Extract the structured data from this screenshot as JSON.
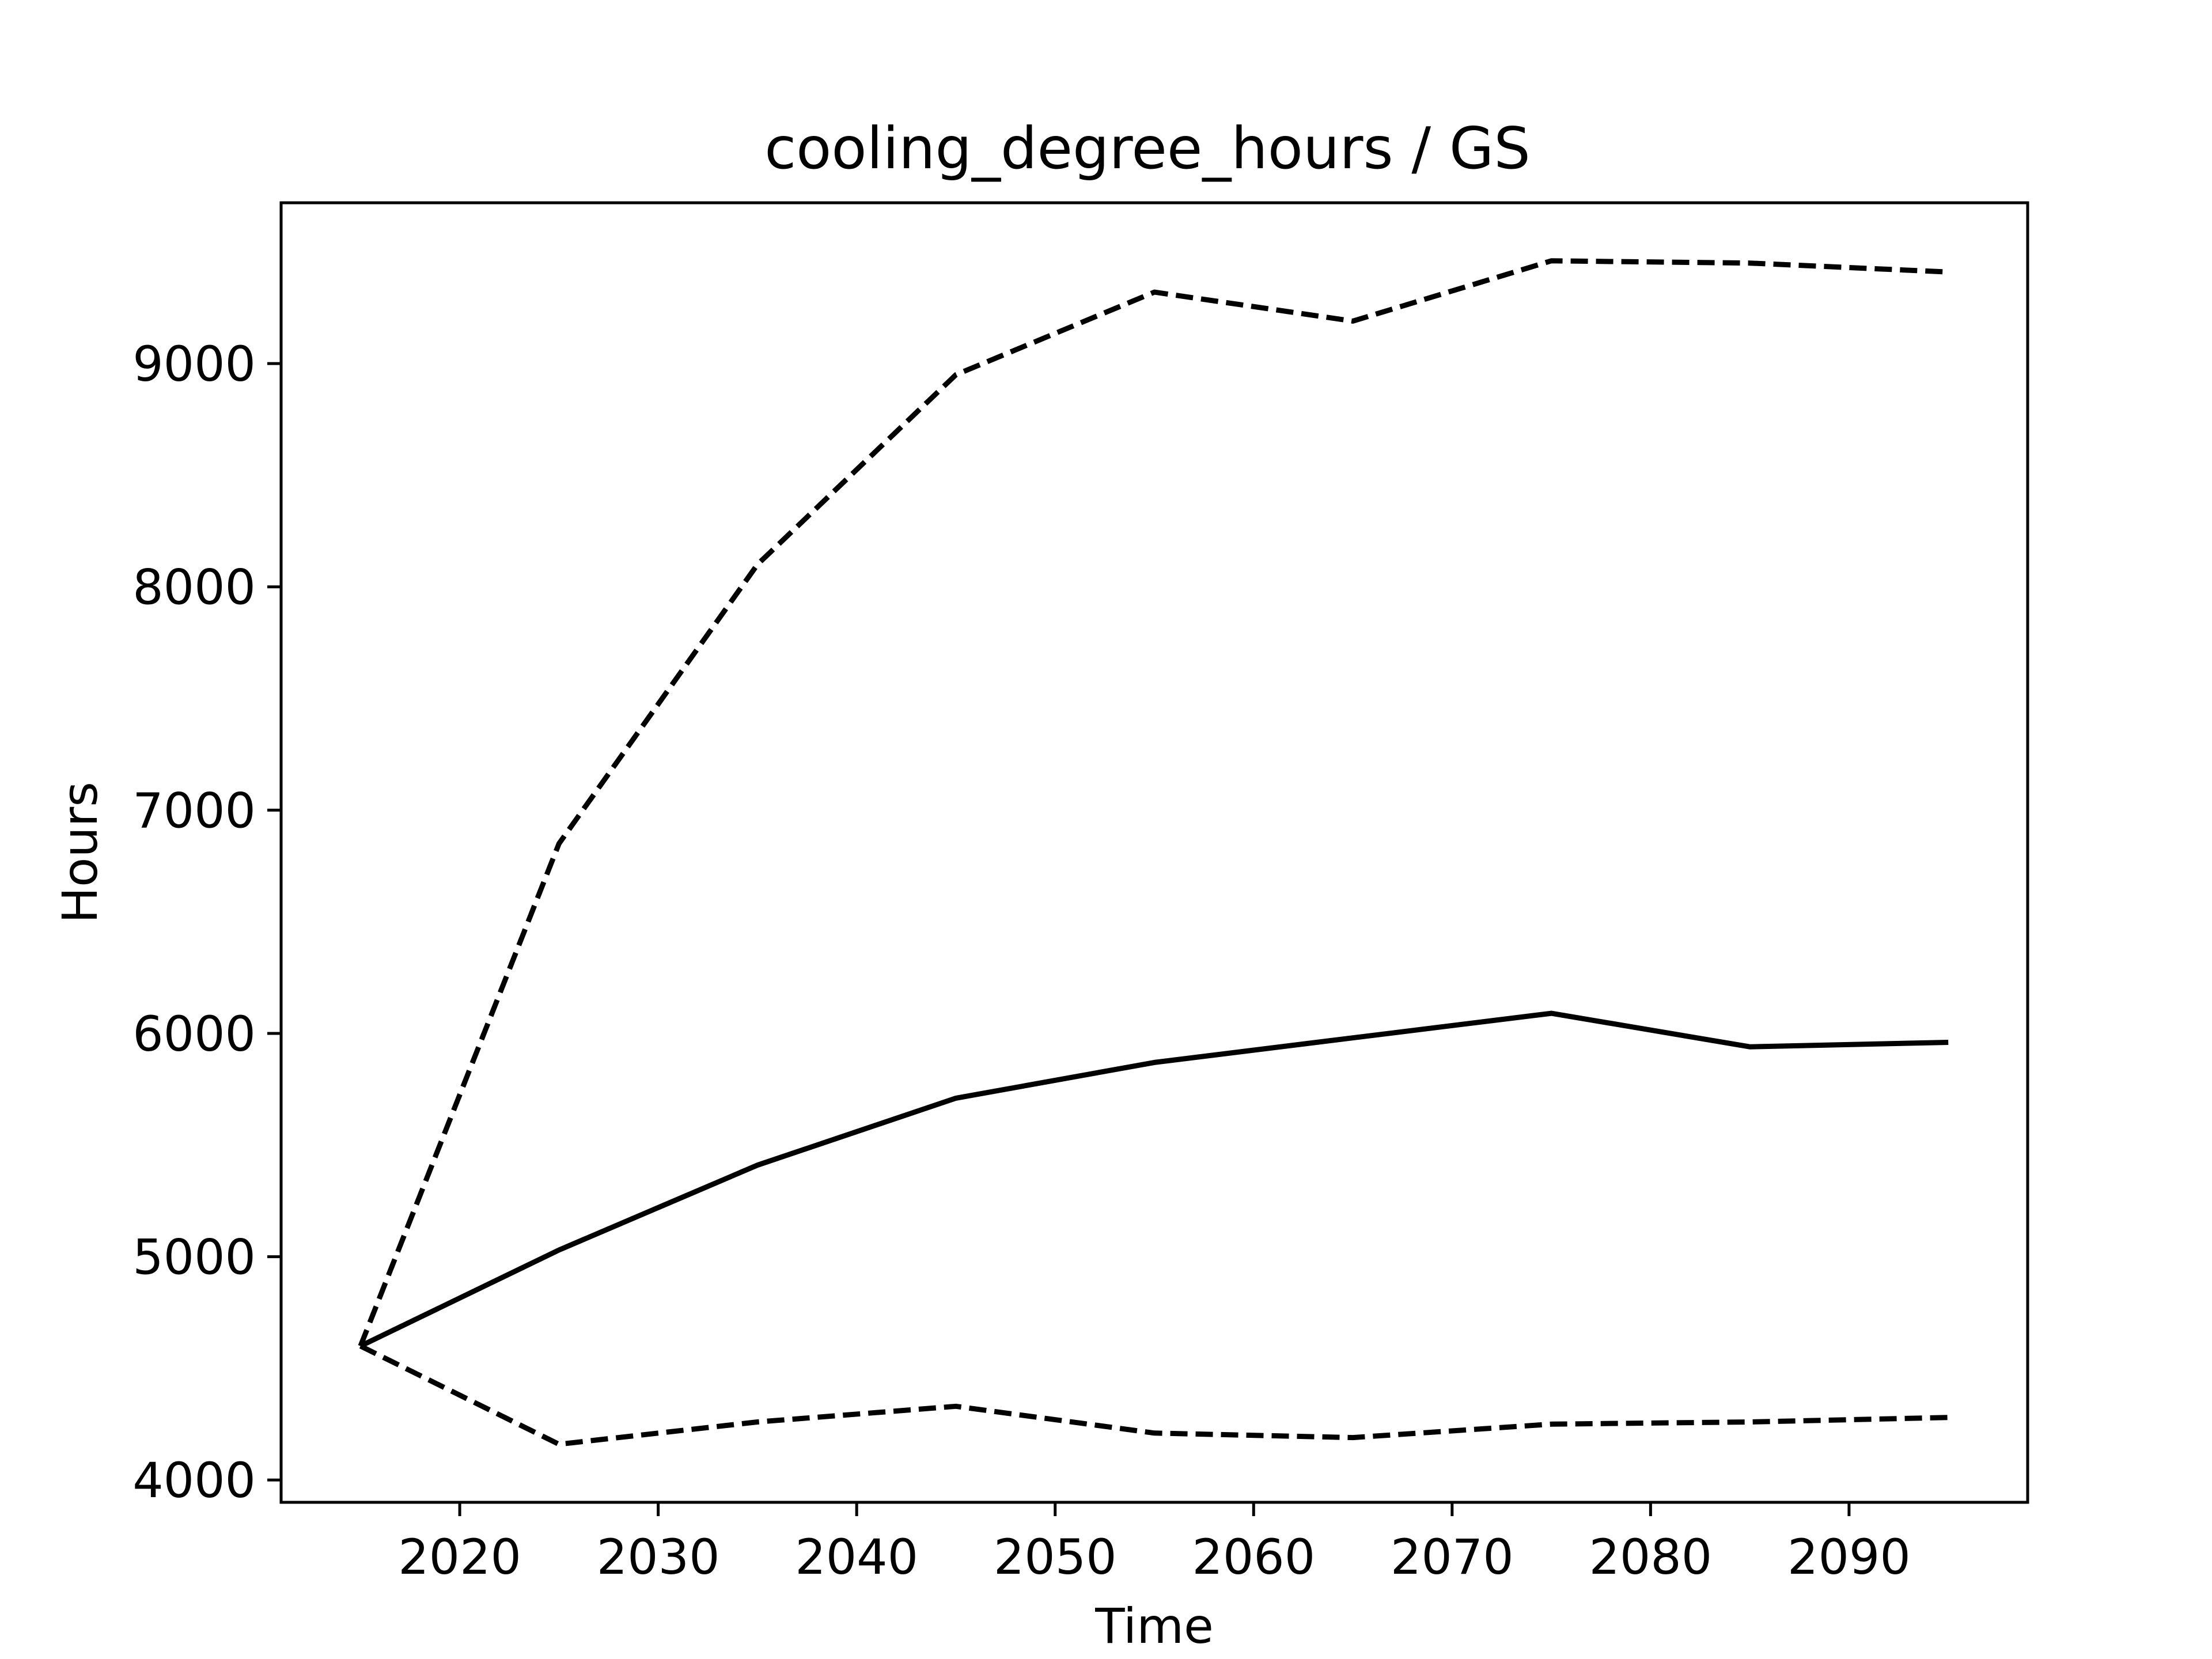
{
  "chart_data": {
    "type": "line",
    "title": "cooling_degree_hours / GS",
    "xlabel": "Time",
    "ylabel": "Hours",
    "xlim": [
      2011,
      2099
    ],
    "ylim": [
      3900,
      9720
    ],
    "x_ticks": [
      2020,
      2030,
      2040,
      2050,
      2060,
      2070,
      2080,
      2090
    ],
    "y_ticks": [
      4000,
      5000,
      6000,
      7000,
      8000,
      9000
    ],
    "grid": false,
    "legend": "none",
    "x": [
      2015,
      2025,
      2035,
      2045,
      2055,
      2065,
      2075,
      2085,
      2095
    ],
    "series": [
      {
        "values": [
          4600,
          6850,
          8100,
          8950,
          9320,
          9190,
          9460,
          9450,
          9410
        ],
        "style": "dashed",
        "color": "#000000"
      },
      {
        "values": [
          4600,
          5030,
          5410,
          5710,
          5870,
          5980,
          6090,
          5940,
          5960
        ],
        "style": "solid",
        "color": "#000000"
      },
      {
        "values": [
          4600,
          4160,
          4260,
          4330,
          4210,
          4190,
          4250,
          4260,
          4280
        ],
        "style": "dashed",
        "color": "#000000"
      }
    ]
  }
}
